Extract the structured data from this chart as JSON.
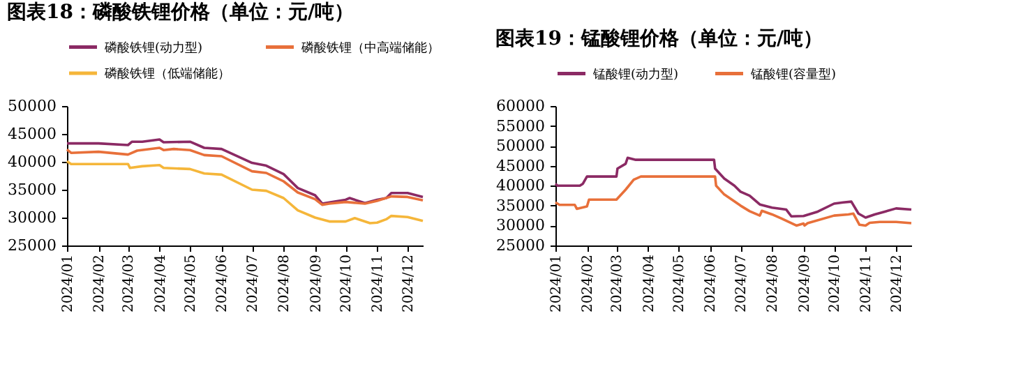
{
  "chart_data": [
    {
      "type": "line",
      "title": "图表18：磷酸铁锂价格（单位：元/吨）",
      "legend": "top",
      "grid": false,
      "line_style": "solid",
      "marker": "none",
      "ylim": [
        25000,
        50000
      ],
      "yticks": [
        25000,
        30000,
        35000,
        40000,
        45000,
        50000
      ],
      "xlim": [
        "2024-01-01",
        "2024-12-16"
      ],
      "xticks": [
        {
          "value": "2024-01-01",
          "label": "2024/01"
        },
        {
          "value": "2024-02-01",
          "label": "2024/02"
        },
        {
          "value": "2024-03-01",
          "label": "2024/03"
        },
        {
          "value": "2024-04-01",
          "label": "2024/04"
        },
        {
          "value": "2024-05-01",
          "label": "2024/05"
        },
        {
          "value": "2024-06-01",
          "label": "2024/06"
        },
        {
          "value": "2024-07-01",
          "label": "2024/07"
        },
        {
          "value": "2024-08-01",
          "label": "2024/08"
        },
        {
          "value": "2024-09-01",
          "label": "2024/09"
        },
        {
          "value": "2024-10-01",
          "label": "2024/10"
        },
        {
          "value": "2024-11-01",
          "label": "2024/11"
        },
        {
          "value": "2024-12-01",
          "label": "2024/12"
        }
      ],
      "series": [
        {
          "name": "磷酸铁锂(动力型)",
          "color": "#8b2a64",
          "x": [
            "2024-01-01",
            "2024-02-01",
            "2024-03-01",
            "2024-03-05",
            "2024-03-15",
            "2024-04-01",
            "2024-04-05",
            "2024-05-01",
            "2024-05-15",
            "2024-06-01",
            "2024-07-01",
            "2024-07-15",
            "2024-08-01",
            "2024-08-15",
            "2024-09-01",
            "2024-09-08",
            "2024-09-15",
            "2024-10-01",
            "2024-10-05",
            "2024-10-20",
            "2024-11-01",
            "2024-11-10",
            "2024-11-15",
            "2024-12-01",
            "2024-12-16"
          ],
          "values": [
            43300,
            43300,
            43000,
            43600,
            43600,
            44000,
            43500,
            43600,
            42500,
            42300,
            39800,
            39300,
            37800,
            35300,
            34000,
            32500,
            32700,
            33200,
            33500,
            32600,
            33200,
            33500,
            34400,
            34400,
            33700
          ]
        },
        {
          "name": "磷酸铁锂（中高端储能）",
          "color": "#e8703a",
          "x": [
            "2024-01-01",
            "2024-01-05",
            "2024-02-01",
            "2024-03-01",
            "2024-03-10",
            "2024-04-01",
            "2024-04-05",
            "2024-04-15",
            "2024-05-01",
            "2024-05-15",
            "2024-06-01",
            "2024-07-01",
            "2024-07-15",
            "2024-08-01",
            "2024-08-15",
            "2024-09-01",
            "2024-09-08",
            "2024-09-15",
            "2024-10-01",
            "2024-10-20",
            "2024-11-01",
            "2024-11-15",
            "2024-12-01",
            "2024-12-16"
          ],
          "values": [
            42200,
            41600,
            41800,
            41300,
            42000,
            42500,
            42100,
            42300,
            42100,
            41200,
            41000,
            38300,
            38000,
            36500,
            34500,
            33300,
            32300,
            32500,
            32800,
            32500,
            33000,
            33800,
            33700,
            33100
          ]
        },
        {
          "name": "磷酸铁锂（低端储能）",
          "color": "#f5b63a",
          "x": [
            "2024-01-01",
            "2024-01-05",
            "2024-03-01",
            "2024-03-03",
            "2024-03-15",
            "2024-04-01",
            "2024-04-05",
            "2024-05-01",
            "2024-05-15",
            "2024-06-01",
            "2024-07-01",
            "2024-07-15",
            "2024-08-01",
            "2024-08-15",
            "2024-09-01",
            "2024-09-15",
            "2024-10-01",
            "2024-10-10",
            "2024-10-25",
            "2024-11-01",
            "2024-11-10",
            "2024-11-15",
            "2024-12-01",
            "2024-12-16"
          ],
          "values": [
            40100,
            39600,
            39600,
            38900,
            39200,
            39400,
            38900,
            38700,
            37900,
            37700,
            35000,
            34800,
            33500,
            31300,
            30000,
            29300,
            29300,
            29900,
            29000,
            29100,
            29700,
            30300,
            30100,
            29400
          ]
        }
      ]
    },
    {
      "type": "line",
      "title": "图表19：锰酸锂价格（单位：元/吨）",
      "legend": "top",
      "grid": false,
      "line_style": "solid",
      "marker": "none",
      "ylim": [
        25000,
        60000
      ],
      "yticks": [
        25000,
        30000,
        35000,
        40000,
        45000,
        50000,
        55000,
        60000
      ],
      "xlim": [
        "2024-01-01",
        "2024-12-16"
      ],
      "xticks": [
        {
          "value": "2024-01-01",
          "label": "2024/01"
        },
        {
          "value": "2024-02-01",
          "label": "2024/02"
        },
        {
          "value": "2024-03-01",
          "label": "2024/03"
        },
        {
          "value": "2024-04-01",
          "label": "2024/04"
        },
        {
          "value": "2024-05-01",
          "label": "2024/05"
        },
        {
          "value": "2024-06-01",
          "label": "2024/06"
        },
        {
          "value": "2024-07-01",
          "label": "2024/07"
        },
        {
          "value": "2024-08-01",
          "label": "2024/08"
        },
        {
          "value": "2024-09-01",
          "label": "2024/09"
        },
        {
          "value": "2024-10-01",
          "label": "2024/10"
        },
        {
          "value": "2024-11-01",
          "label": "2024/11"
        },
        {
          "value": "2024-12-01",
          "label": "2024/12"
        }
      ],
      "series": [
        {
          "name": "锰酸锂(动力型)",
          "color": "#8b2a64",
          "x": [
            "2024-01-01",
            "2024-01-03",
            "2024-01-25",
            "2024-01-28",
            "2024-02-01",
            "2024-03-01",
            "2024-03-02",
            "2024-03-10",
            "2024-03-12",
            "2024-03-20",
            "2024-06-05",
            "2024-06-06",
            "2024-06-15",
            "2024-06-25",
            "2024-07-01",
            "2024-07-10",
            "2024-07-20",
            "2024-08-01",
            "2024-08-15",
            "2024-08-20",
            "2024-09-01",
            "2024-09-15",
            "2024-10-01",
            "2024-10-10",
            "2024-10-18",
            "2024-10-25",
            "2024-11-01",
            "2024-11-10",
            "2024-11-20",
            "2024-12-01",
            "2024-12-16"
          ],
          "values": [
            40500,
            40000,
            40000,
            40500,
            42300,
            42300,
            44300,
            45500,
            47000,
            46500,
            46500,
            44300,
            41800,
            40000,
            38500,
            37500,
            35300,
            34500,
            34000,
            32300,
            32400,
            33500,
            35500,
            35800,
            36000,
            33000,
            32000,
            32800,
            33500,
            34300,
            34000
          ]
        },
        {
          "name": "锰酸锂(容量型)",
          "color": "#e8703a",
          "x": [
            "2024-01-01",
            "2024-01-05",
            "2024-01-20",
            "2024-01-22",
            "2024-02-01",
            "2024-02-03",
            "2024-03-01",
            "2024-03-10",
            "2024-03-18",
            "2024-03-25",
            "2024-06-06",
            "2024-06-07",
            "2024-06-15",
            "2024-07-01",
            "2024-07-10",
            "2024-07-20",
            "2024-07-22",
            "2024-08-01",
            "2024-08-10",
            "2024-08-25",
            "2024-09-01",
            "2024-09-02",
            "2024-09-05",
            "2024-10-01",
            "2024-10-15",
            "2024-10-20",
            "2024-10-26",
            "2024-11-01",
            "2024-11-05",
            "2024-11-15",
            "2024-12-01",
            "2024-12-16"
          ],
          "values": [
            35800,
            35200,
            35200,
            34200,
            34800,
            36500,
            36500,
            39000,
            41500,
            42300,
            42300,
            40000,
            37800,
            35000,
            33600,
            32500,
            33700,
            32800,
            31800,
            30000,
            30500,
            30000,
            30600,
            32500,
            32800,
            33000,
            30200,
            30000,
            30700,
            30900,
            30900,
            30600
          ]
        }
      ]
    }
  ]
}
